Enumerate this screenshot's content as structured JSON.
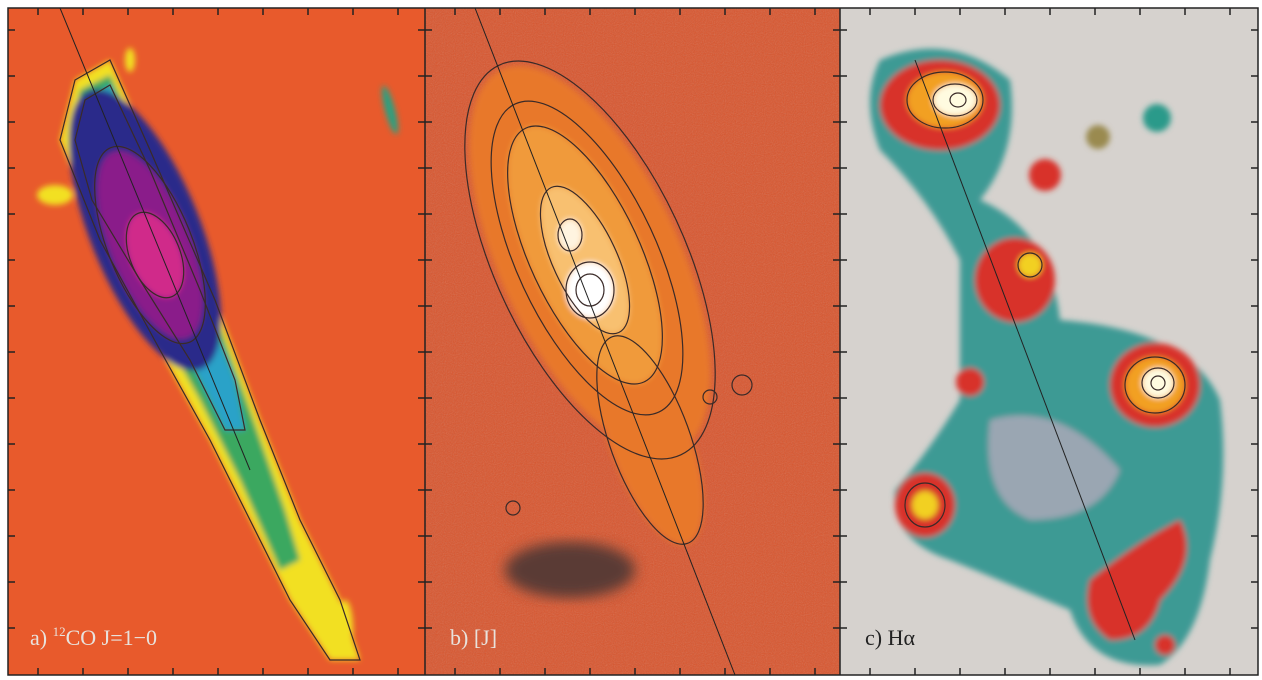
{
  "panels": [
    {
      "letter": "a)",
      "sup": "12",
      "text": "CO J=1−0"
    },
    {
      "letter": "b)",
      "text": "[J]"
    },
    {
      "letter": "c)",
      "text": "Hα"
    }
  ]
}
